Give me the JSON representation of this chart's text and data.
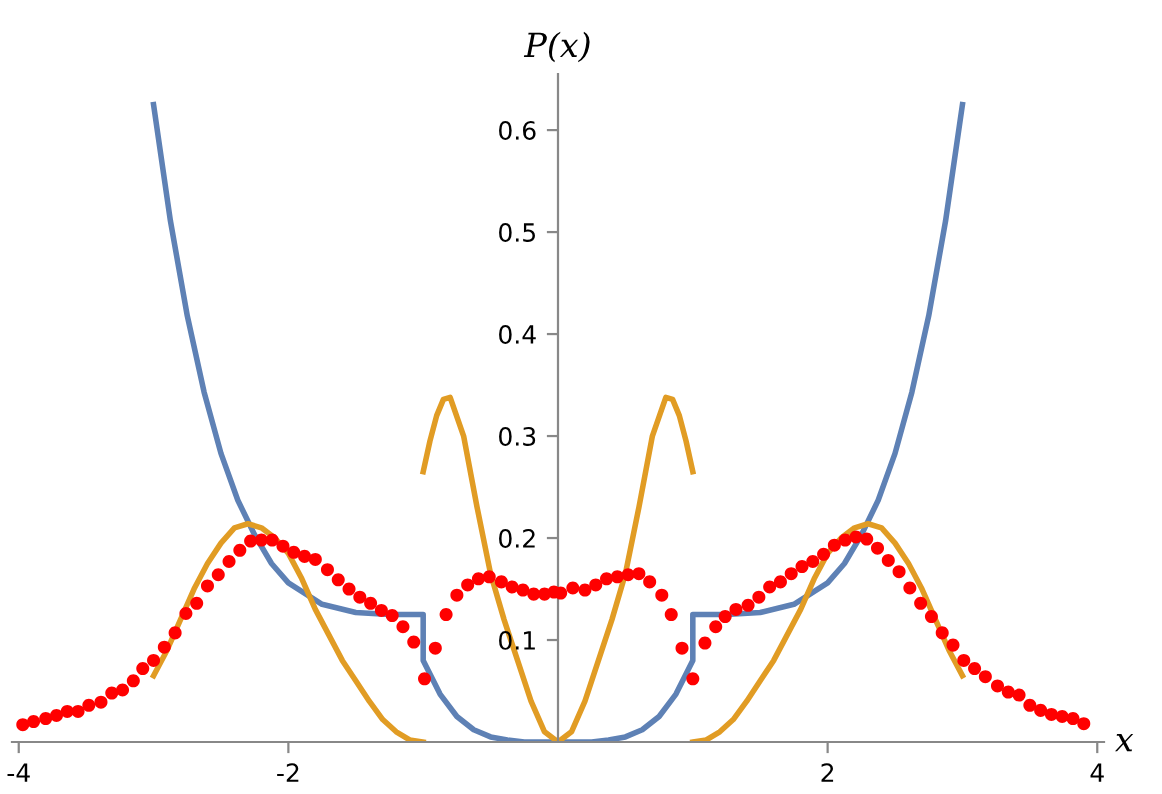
{
  "chart_data": {
    "type": "line",
    "xlabel": "x",
    "ylabel": "P(x)",
    "xlim": [
      -4.05,
      4.05
    ],
    "ylim": [
      0,
      0.655
    ],
    "xticks": [
      -4,
      -2,
      2,
      4
    ],
    "yticks": [
      0.1,
      0.2,
      0.3,
      0.4,
      0.5,
      0.6
    ],
    "grid": false,
    "legend": false,
    "series": [
      {
        "color": "#5e81b5",
        "x": [
          -3,
          -2.875,
          -2.75,
          -2.625,
          -2.5,
          -2.375,
          -2.25,
          -2.125,
          -2,
          -1.75,
          -1.5,
          -1.25,
          -1,
          -1,
          -0.875,
          -0.75,
          -0.625,
          -0.5,
          -0.375,
          -0.25,
          0,
          0.25,
          0.375,
          0.5,
          0.625,
          0.75,
          0.875,
          1,
          1,
          1.25,
          1.5,
          1.75,
          2,
          2.125,
          2.25,
          2.375,
          2.5,
          2.625,
          2.75,
          2.875,
          3
        ],
        "values": [
          0.625,
          0.511,
          0.418,
          0.343,
          0.283,
          0.237,
          0.203,
          0.175,
          0.156,
          0.135,
          0.127,
          0.125,
          0.125,
          0.08,
          0.047,
          0.025,
          0.012,
          0.005,
          0.002,
          0,
          0,
          0,
          0.002,
          0.005,
          0.012,
          0.025,
          0.047,
          0.08,
          0.125,
          0.125,
          0.127,
          0.135,
          0.156,
          0.175,
          0.203,
          0.237,
          0.283,
          0.343,
          0.418,
          0.511,
          0.625
        ]
      },
      {
        "color": "#e19c24",
        "x": [
          -3,
          -2.9,
          -2.8,
          -2.7,
          -2.6,
          -2.5,
          -2.4,
          -2.3,
          -2.2,
          -2.1,
          -2,
          -1.9,
          -1.8,
          -1.7,
          -1.6,
          -1.5,
          -1.4,
          -1.3,
          -1.2,
          -1.1,
          -1
        ],
        "values": [
          0.065,
          0.09,
          0.12,
          0.15,
          0.175,
          0.195,
          0.21,
          0.214,
          0.21,
          0.2,
          0.185,
          0.16,
          0.13,
          0.105,
          0.08,
          0.06,
          0.04,
          0.022,
          0.01,
          0.002,
          0
        ]
      },
      {
        "color": "#e19c24",
        "x": [
          -1,
          -0.95,
          -0.9,
          -0.85,
          -0.8,
          -0.7,
          -0.6,
          -0.5,
          -0.4,
          -0.3,
          -0.2,
          -0.1,
          0,
          0.1,
          0.2,
          0.3,
          0.4,
          0.5,
          0.6,
          0.7,
          0.8,
          0.85,
          0.9,
          0.95,
          1
        ],
        "values": [
          0.265,
          0.295,
          0.32,
          0.336,
          0.338,
          0.3,
          0.23,
          0.165,
          0.12,
          0.08,
          0.04,
          0.01,
          0,
          0.01,
          0.04,
          0.08,
          0.12,
          0.165,
          0.23,
          0.3,
          0.338,
          0.336,
          0.32,
          0.295,
          0.265
        ]
      },
      {
        "color": "#e19c24",
        "x": [
          1,
          1.1,
          1.2,
          1.3,
          1.4,
          1.5,
          1.6,
          1.7,
          1.8,
          1.9,
          2,
          2.1,
          2.2,
          2.3,
          2.4,
          2.5,
          2.6,
          2.7,
          2.8,
          2.9,
          3
        ],
        "values": [
          0,
          0.002,
          0.01,
          0.022,
          0.04,
          0.06,
          0.08,
          0.105,
          0.13,
          0.16,
          0.185,
          0.2,
          0.21,
          0.214,
          0.21,
          0.195,
          0.175,
          0.15,
          0.12,
          0.09,
          0.065
        ]
      },
      {
        "type": "scatter",
        "color": "#ff0000",
        "marker": "circle",
        "x": [
          -3.97,
          -3.89,
          -3.8,
          -3.72,
          -3.64,
          -3.56,
          -3.48,
          -3.39,
          -3.31,
          -3.23,
          -3.15,
          -3.08,
          -3.0,
          -2.92,
          -2.84,
          -2.76,
          -2.68,
          -2.6,
          -2.52,
          -2.44,
          -2.36,
          -2.28,
          -2.2,
          -2.12,
          -2.04,
          -1.96,
          -1.88,
          -1.8,
          -1.71,
          -1.63,
          -1.55,
          -1.47,
          -1.39,
          -1.31,
          -1.23,
          -1.15,
          -1.07,
          -0.99,
          -0.91,
          -0.83,
          -0.75,
          -0.67,
          -0.59,
          -0.51,
          -0.42,
          -0.34,
          -0.26,
          -0.18,
          -0.1,
          -0.03,
          0.02,
          0.11,
          0.2,
          0.28,
          0.36,
          0.44,
          0.52,
          0.6,
          0.68,
          0.77,
          0.84,
          0.92,
          1.0,
          1.09,
          1.17,
          1.24,
          1.32,
          1.41,
          1.49,
          1.57,
          1.65,
          1.73,
          1.81,
          1.89,
          1.97,
          2.05,
          2.13,
          2.21,
          2.29,
          2.37,
          2.45,
          2.53,
          2.61,
          2.69,
          2.77,
          2.85,
          2.93,
          3.01,
          3.09,
          3.17,
          3.26,
          3.34,
          3.42,
          3.5,
          3.58,
          3.66,
          3.74,
          3.82,
          3.9
        ],
        "values": [
          0.017,
          0.02,
          0.023,
          0.026,
          0.03,
          0.03,
          0.036,
          0.039,
          0.048,
          0.051,
          0.06,
          0.072,
          0.08,
          0.093,
          0.107,
          0.126,
          0.136,
          0.153,
          0.164,
          0.177,
          0.188,
          0.197,
          0.198,
          0.198,
          0.192,
          0.186,
          0.182,
          0.179,
          0.169,
          0.159,
          0.15,
          0.142,
          0.136,
          0.129,
          0.124,
          0.113,
          0.098,
          0.062,
          0.092,
          0.125,
          0.144,
          0.154,
          0.16,
          0.162,
          0.157,
          0.152,
          0.149,
          0.145,
          0.145,
          0.147,
          0.146,
          0.151,
          0.149,
          0.154,
          0.16,
          0.162,
          0.164,
          0.165,
          0.157,
          0.144,
          0.125,
          0.092,
          0.062,
          0.097,
          0.113,
          0.123,
          0.13,
          0.134,
          0.142,
          0.152,
          0.157,
          0.165,
          0.172,
          0.177,
          0.184,
          0.193,
          0.198,
          0.201,
          0.199,
          0.19,
          0.178,
          0.167,
          0.151,
          0.136,
          0.123,
          0.107,
          0.095,
          0.08,
          0.072,
          0.064,
          0.055,
          0.049,
          0.046,
          0.036,
          0.031,
          0.027,
          0.025,
          0.023,
          0.018
        ]
      }
    ]
  }
}
